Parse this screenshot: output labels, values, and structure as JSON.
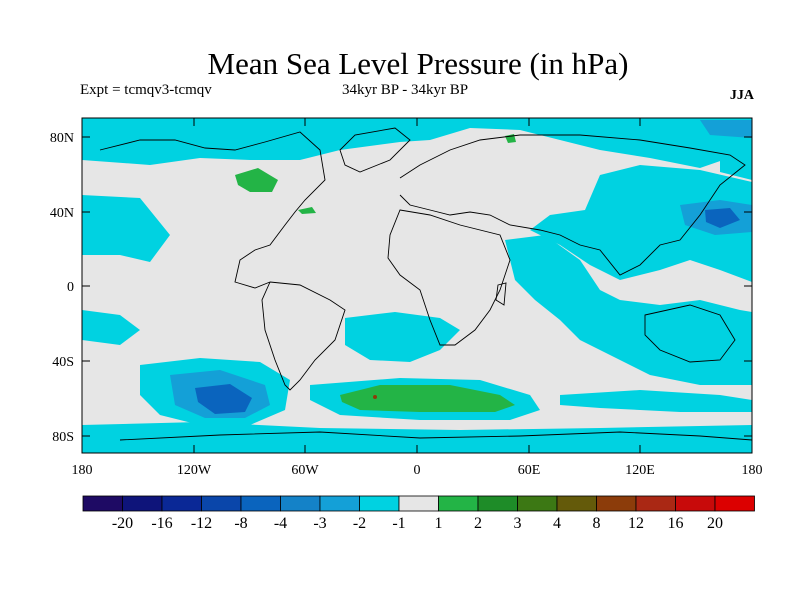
{
  "title": "Mean Sea Level Pressure (in hPa)",
  "expt": "Expt = tcmqv3-tcmqv",
  "period": "34kyr BP - 34kyr BP",
  "season": "JJA",
  "lat_ticks": [
    "80N",
    "40N",
    "0",
    "40S",
    "80S"
  ],
  "lon_ticks": [
    "180",
    "120W",
    "60W",
    "0",
    "60E",
    "120E",
    "180"
  ],
  "colorbar": {
    "labels": [
      "-20",
      "-16",
      "-12",
      "-8",
      "-4",
      "-3",
      "-2",
      "-1",
      "1",
      "2",
      "3",
      "4",
      "8",
      "12",
      "16",
      "20"
    ],
    "colors": [
      "#1e0a64",
      "#0e147a",
      "#0a2896",
      "#0a46aa",
      "#0a64be",
      "#1482c8",
      "#14a0d7",
      "#00d2e1",
      "#e6e6e6",
      "#23b446",
      "#1e8c28",
      "#3c7814",
      "#645a0a",
      "#8c3c0a",
      "#aa2814",
      "#c80a0a",
      "#dc0000"
    ]
  },
  "colors": {
    "land_background": "#e6e6e6",
    "negative_shade": "#00d2e1",
    "deep_negative": "#0a64be",
    "positive": "#23b446"
  }
}
